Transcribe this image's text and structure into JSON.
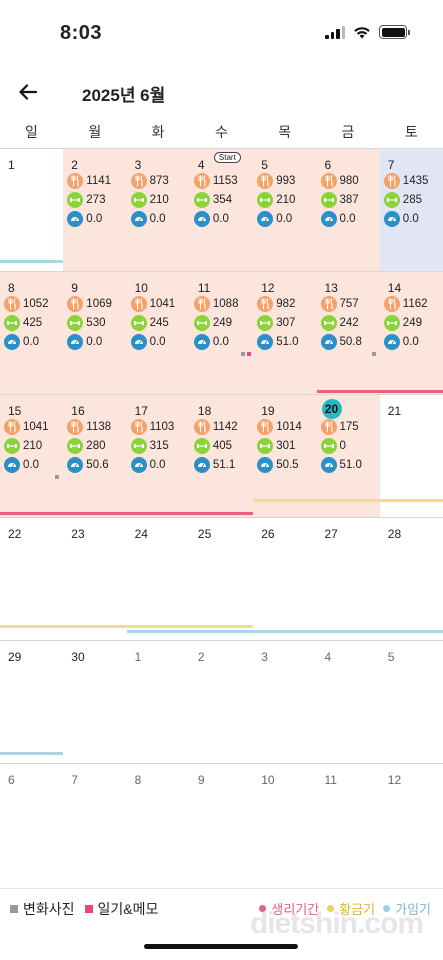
{
  "status": {
    "time": "8:03"
  },
  "header": {
    "title": "2025년 6월"
  },
  "weekdays": [
    "일",
    "월",
    "화",
    "수",
    "목",
    "금",
    "토"
  ],
  "colors": {
    "peach_bg": "#fce5dc",
    "blue_bg": "#e2e5f6",
    "period": "#e9607f",
    "golden": "#f5dc86",
    "fertile": "#a9d6e3",
    "today": "#22b8c4",
    "food_icon": "#f4a268",
    "exercise_icon": "#8bd33a",
    "weight_icon": "#2b90c8"
  },
  "icons": {
    "food": "fork-knife-icon",
    "exercise": "dumbbell-icon",
    "weight": "scale-icon"
  },
  "start_badge": "Start",
  "weeks": [
    [
      {
        "day": "1",
        "bg": "none"
      },
      {
        "day": "2",
        "bg": "peach",
        "food": "1141",
        "exercise": "273",
        "weight": "0.0"
      },
      {
        "day": "3",
        "bg": "peach",
        "food": "873",
        "exercise": "210",
        "weight": "0.0"
      },
      {
        "day": "4",
        "bg": "peach",
        "badge": true,
        "food": "1153",
        "exercise": "354",
        "weight": "0.0"
      },
      {
        "day": "5",
        "bg": "peach",
        "food": "993",
        "exercise": "210",
        "weight": "0.0"
      },
      {
        "day": "6",
        "bg": "peach",
        "food": "980",
        "exercise": "387",
        "weight": "0.0"
      },
      {
        "day": "7",
        "bg": "blue",
        "food": "1435",
        "exercise": "285",
        "weight": "0.0"
      }
    ],
    [
      {
        "day": "8",
        "bg": "peach",
        "food": "1052",
        "exercise": "425",
        "weight": "0.0"
      },
      {
        "day": "9",
        "bg": "peach",
        "food": "1069",
        "exercise": "530",
        "weight": "0.0"
      },
      {
        "day": "10",
        "bg": "peach",
        "food": "1041",
        "exercise": "245",
        "weight": "0.0"
      },
      {
        "day": "11",
        "bg": "peach",
        "food": "1088",
        "exercise": "249",
        "weight": "0.0",
        "dots": [
          "photo",
          "diary"
        ]
      },
      {
        "day": "12",
        "bg": "peach",
        "food": "982",
        "exercise": "307",
        "weight": "51.0"
      },
      {
        "day": "13",
        "bg": "peach",
        "food": "757",
        "exercise": "242",
        "weight": "50.8",
        "dots": [
          "photo"
        ]
      },
      {
        "day": "14",
        "bg": "peach",
        "food": "1162",
        "exercise": "249",
        "weight": "0.0"
      }
    ],
    [
      {
        "day": "15",
        "bg": "peach",
        "food": "1041",
        "exercise": "210",
        "weight": "0.0",
        "dots": [
          "photo"
        ]
      },
      {
        "day": "16",
        "bg": "peach",
        "food": "1138",
        "exercise": "280",
        "weight": "50.6"
      },
      {
        "day": "17",
        "bg": "peach",
        "food": "1103",
        "exercise": "315",
        "weight": "0.0"
      },
      {
        "day": "18",
        "bg": "peach",
        "food": "1142",
        "exercise": "405",
        "weight": "51.1"
      },
      {
        "day": "19",
        "bg": "peach",
        "food": "1014",
        "exercise": "301",
        "weight": "50.5"
      },
      {
        "day": "20",
        "bg": "peach",
        "today": true,
        "food": "175",
        "exercise": "0",
        "weight": "51.0"
      },
      {
        "day": "21",
        "bg": "none"
      }
    ],
    [
      {
        "day": "22"
      },
      {
        "day": "23"
      },
      {
        "day": "24"
      },
      {
        "day": "25"
      },
      {
        "day": "26"
      },
      {
        "day": "27"
      },
      {
        "day": "28"
      }
    ],
    [
      {
        "day": "29"
      },
      {
        "day": "30"
      },
      {
        "day": "1",
        "other": true
      },
      {
        "day": "2",
        "other": true
      },
      {
        "day": "3",
        "other": true
      },
      {
        "day": "4",
        "other": true
      },
      {
        "day": "5",
        "other": true
      }
    ],
    [
      {
        "day": "6",
        "other": true
      },
      {
        "day": "7",
        "other": true
      },
      {
        "day": "8",
        "other": true
      },
      {
        "day": "9",
        "other": true
      },
      {
        "day": "10",
        "other": true
      },
      {
        "day": "11",
        "other": true
      },
      {
        "day": "12",
        "other": true
      }
    ]
  ],
  "cycle_bars": [
    {
      "week": 0,
      "from": 0,
      "to": 1,
      "type": "fertile"
    },
    {
      "week": 1,
      "from": 5,
      "to": 7,
      "type": "period"
    },
    {
      "week": 2,
      "from": 0,
      "to": 4,
      "type": "period"
    },
    {
      "week": 2,
      "from": 4,
      "to": 7,
      "type": "golden"
    },
    {
      "week": 3,
      "from": 0,
      "to": 4,
      "type": "golden"
    },
    {
      "week": 3,
      "from": 2,
      "to": 7,
      "type": "fertile"
    },
    {
      "week": 4,
      "from": 0,
      "to": 1,
      "type": "fertile"
    }
  ],
  "legend": {
    "photo": "변화사진",
    "diary": "일기&메모",
    "period": "생리기간",
    "golden": "황금기",
    "fertile": "가임기"
  },
  "watermark": "dietshin.com"
}
